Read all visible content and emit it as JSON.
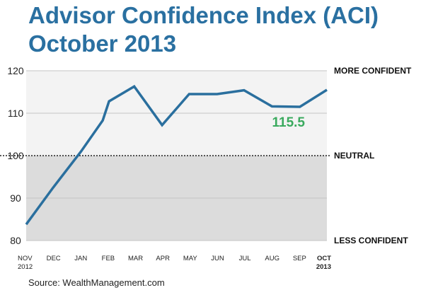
{
  "colors": {
    "title": "#2a70a1",
    "line": "#2a6f9e",
    "highlight": "#3aaa5e",
    "upper_band": "#f3f3f3",
    "lower_band": "#dcdcdc"
  },
  "chart_data": {
    "type": "line",
    "title": "Advisor Confidence Index (ACI)",
    "subtitle": "October 2013",
    "x_tick_labels": [
      {
        "line1": "NOV",
        "line2": "2012",
        "bold": false
      },
      {
        "line1": "DEC",
        "line2": "",
        "bold": false
      },
      {
        "line1": "JAN",
        "line2": "",
        "bold": false
      },
      {
        "line1": "FEB",
        "line2": "",
        "bold": false
      },
      {
        "line1": "MAR",
        "line2": "",
        "bold": false
      },
      {
        "line1": "APR",
        "line2": "",
        "bold": false
      },
      {
        "line1": "MAY",
        "line2": "",
        "bold": false
      },
      {
        "line1": "JUN",
        "line2": "",
        "bold": false
      },
      {
        "line1": "JUL",
        "line2": "",
        "bold": false
      },
      {
        "line1": "AUG",
        "line2": "",
        "bold": false
      },
      {
        "line1": "SEP",
        "line2": "",
        "bold": false
      },
      {
        "line1": "OCT",
        "line2": "2013",
        "bold": true
      }
    ],
    "y_ticks": [
      80,
      90,
      100,
      110,
      120
    ],
    "ylim": [
      80,
      120
    ],
    "series": [
      {
        "x": [
          "2012-11",
          "2012-12",
          "2013-01",
          "2013-01-25",
          "2013-02",
          "2013-03",
          "2013-04",
          "2013-05",
          "2013-06",
          "2013-07",
          "2013-08",
          "2013-09",
          "2013-10"
        ],
        "values": [
          83.8,
          92.5,
          101.0,
          108.3,
          112.8,
          116.3,
          107.2,
          114.5,
          114.5,
          115.4,
          111.6,
          111.5,
          115.5
        ]
      }
    ],
    "reference_line": {
      "value": 100,
      "label": "NEUTRAL"
    },
    "band_labels": {
      "top": "MORE CONFIDENT",
      "bottom": "LESS CONFIDENT"
    },
    "highlight_value": "115.5",
    "grid": true
  },
  "source": "Source: WealthManagement.com"
}
